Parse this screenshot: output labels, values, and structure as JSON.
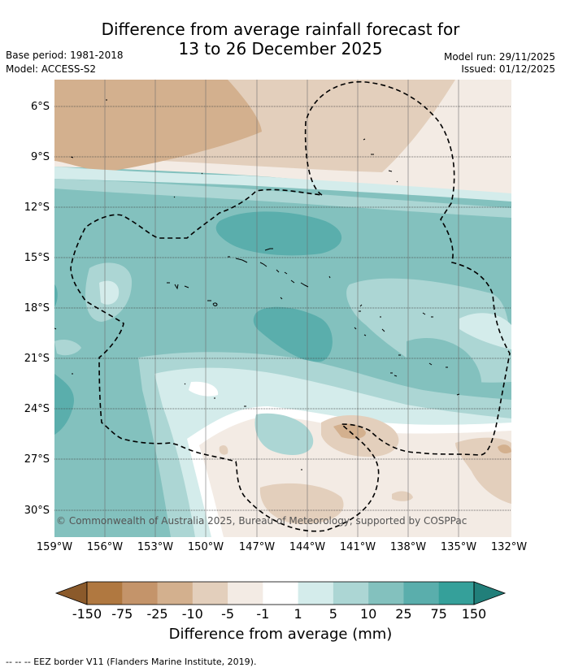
{
  "title_line1": "Difference from average rainfall forecast for",
  "title_line2": "13 to 26 December 2025",
  "base_period": "Base period: 1981-2018",
  "model": "Model: ACCESS-S2",
  "model_run": "Model run: 29/11/2025",
  "issued": "Issued: 01/12/2025",
  "latitudes": [
    "6°S",
    "9°S",
    "12°S",
    "15°S",
    "18°S",
    "21°S",
    "24°S",
    "27°S",
    "30°S"
  ],
  "longitudes": [
    "159°W",
    "156°W",
    "153°W",
    "150°W",
    "147°W",
    "144°W",
    "141°W",
    "138°W",
    "135°W",
    "132°W"
  ],
  "copyright": "© Commonwealth of Australia 2025, Bureau of Meteorology, supported by COSPPac",
  "colorbar": {
    "labels": [
      "-150",
      "-75",
      "-25",
      "-10",
      "-5",
      "-1",
      "1",
      "5",
      "10",
      "25",
      "75",
      "150"
    ],
    "colors": [
      "#8b5a2b",
      "#b07840",
      "#c4946a",
      "#d3b08e",
      "#e3cfbc",
      "#f3ebe4",
      "#ffffff",
      "#d4eceb",
      "#acd6d4",
      "#83c1be",
      "#5aaeac",
      "#35a09a",
      "#217f7a"
    ],
    "title": "Difference from average (mm)"
  },
  "footnote": "--  --  -- EEZ border V11 (Flanders Marine Institute, 2019)."
}
